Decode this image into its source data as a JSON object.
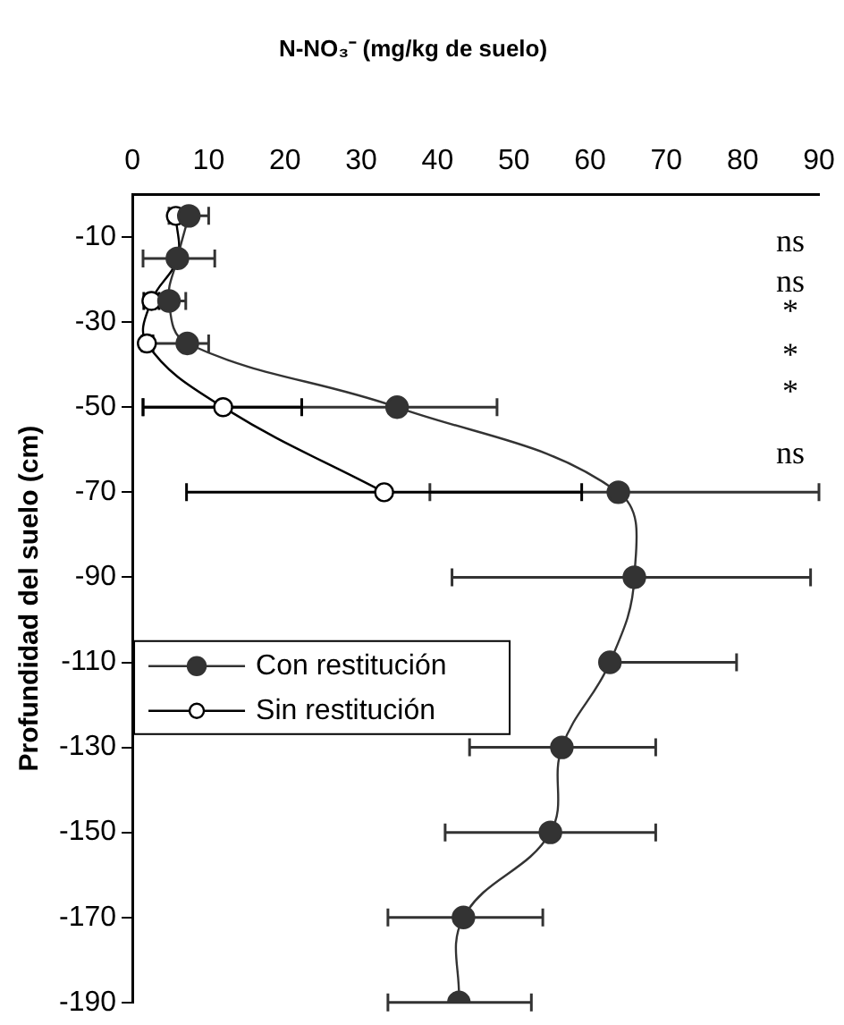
{
  "chart_data": {
    "type": "line",
    "title": "N-NO₃⁻ (mg/kg de suelo)",
    "ylabel": "Profundidad del suelo (cm)",
    "xlim": [
      0,
      90
    ],
    "xticks": [
      0,
      10,
      20,
      30,
      40,
      50,
      60,
      70,
      80,
      90
    ],
    "ylim": [
      -190,
      0
    ],
    "yticks": [
      -10,
      -30,
      -50,
      -70,
      -90,
      -110,
      -130,
      -150,
      -170,
      -190
    ],
    "marker": "circle",
    "legend": "left",
    "grid": false,
    "series": [
      {
        "name": "Con restitución",
        "color": "#333333",
        "x": [
          7.4,
          5.9,
          4.8,
          7.2,
          34.7,
          63.7,
          65.8,
          62.6,
          56.3,
          54.8,
          43.4,
          42.8
        ],
        "values": [
          -5,
          -15,
          -25,
          -35,
          -50,
          -70,
          -90,
          -110,
          -130,
          -150,
          -170,
          -190
        ],
        "xerrors": [
          [
            4.8,
            10
          ],
          [
            1.4,
            10.8
          ],
          [
            3,
            7
          ],
          [
            1.4,
            10
          ],
          [
            1.4,
            47.8
          ],
          [
            39,
            90
          ],
          [
            41.9,
            88.9
          ],
          [
            62.6,
            79.2
          ],
          [
            44.2,
            68.6
          ],
          [
            41,
            68.6
          ],
          [
            33.5,
            53.8
          ],
          [
            33.5,
            52.3
          ]
        ]
      },
      {
        "name": "Sin restitución",
        "color": "#000000",
        "x": [
          5.7,
          5.9,
          2.5,
          1.9,
          11.9,
          33
        ],
        "values": [
          -5,
          -15,
          -25,
          -35,
          -50,
          -70
        ],
        "xerrors": [
          null,
          null,
          [
            1.5,
            3.5
          ],
          [
            1.3,
            2.7
          ],
          [
            1.4,
            22.2
          ],
          [
            7.1,
            58.9
          ]
        ]
      }
    ],
    "annotations": [
      "ns",
      "ns",
      "*",
      "*",
      "*",
      "ns"
    ]
  }
}
